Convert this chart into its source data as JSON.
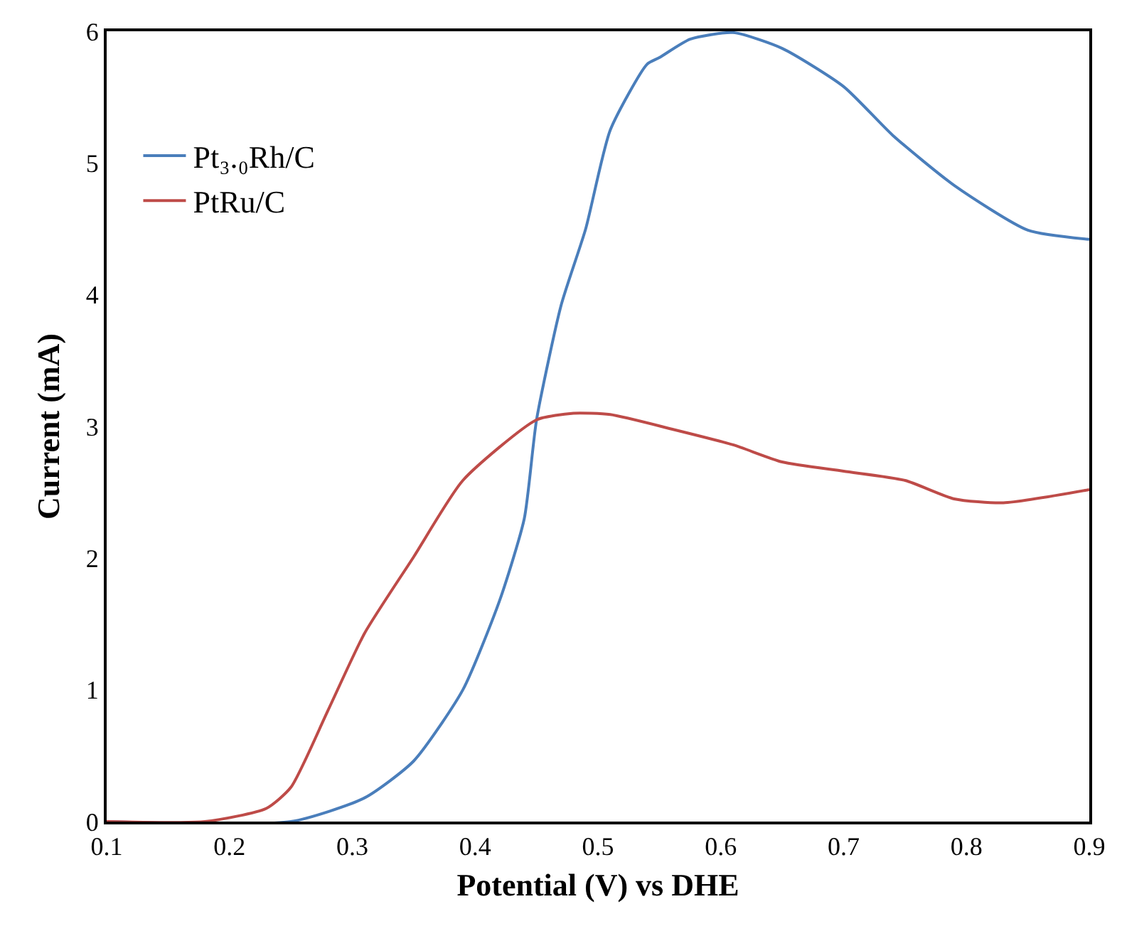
{
  "chart_data": {
    "type": "line",
    "xlabel": "Potential (V) vs DHE",
    "ylabel": "Current (mA)",
    "xlim": [
      0.1,
      0.9
    ],
    "xticks": [
      0.1,
      0.2,
      0.3,
      0.4,
      0.5,
      0.6,
      0.7,
      0.8,
      0.9
    ],
    "ylim": [
      0,
      6
    ],
    "yticks": [
      0,
      1,
      2,
      3,
      4,
      5,
      6
    ],
    "grid": false,
    "legend": "top left",
    "marker": "none",
    "line_style": "solid",
    "series": [
      {
        "name": "Pt₃.₀Rh/C",
        "color": "#4a7ebb",
        "x": [
          0.1,
          0.25,
          0.31,
          0.35,
          0.39,
          0.42,
          0.44,
          0.45,
          0.47,
          0.49,
          0.51,
          0.54,
          0.55,
          0.575,
          0.61,
          0.65,
          0.7,
          0.74,
          0.79,
          0.85,
          0.9
        ],
        "values": [
          0,
          0,
          0.18,
          0.46,
          1.0,
          1.68,
          2.3,
          3.05,
          3.92,
          4.5,
          5.25,
          5.75,
          5.8,
          5.94,
          5.99,
          5.87,
          5.58,
          5.21,
          4.83,
          4.49,
          4.42
        ]
      },
      {
        "name": "PtRu/C",
        "color": "#be4b48",
        "x": [
          0.1,
          0.18,
          0.23,
          0.25,
          0.28,
          0.31,
          0.35,
          0.39,
          0.45,
          0.48,
          0.51,
          0.56,
          0.61,
          0.65,
          0.7,
          0.75,
          0.79,
          0.83,
          0.9
        ],
        "values": [
          0,
          0,
          0.1,
          0.26,
          0.84,
          1.43,
          2.01,
          2.59,
          3.05,
          3.1,
          3.09,
          2.98,
          2.86,
          2.73,
          2.66,
          2.59,
          2.45,
          2.42,
          2.52
        ]
      }
    ]
  }
}
